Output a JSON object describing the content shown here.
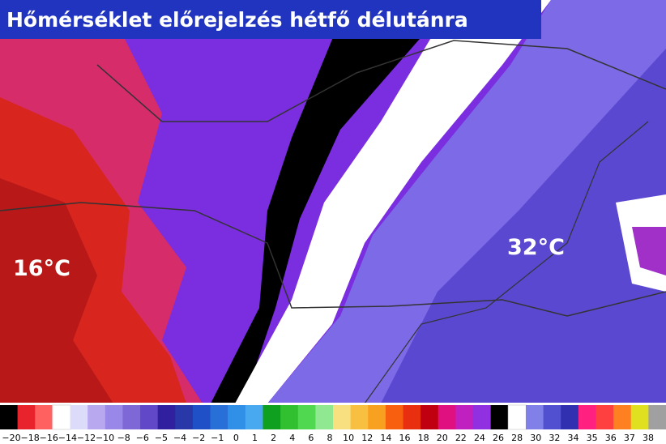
{
  "header": {
    "title": "Hőmérséklet előrejelzés hétfő délutánra"
  },
  "map": {
    "labels": [
      "16°C",
      "32°C"
    ]
  },
  "legend": {
    "labels": [
      "−20",
      "−18",
      "−16",
      "−14",
      "−12",
      "−10",
      "−8",
      "−6",
      "−5",
      "−4",
      "−2",
      "−1",
      "0",
      "1",
      "2",
      "4",
      "6",
      "8",
      "10",
      "12",
      "14",
      "16",
      "18",
      "20",
      "22",
      "24",
      "26",
      "28",
      "30",
      "32",
      "34",
      "35",
      "36",
      "37",
      "38"
    ]
  }
}
